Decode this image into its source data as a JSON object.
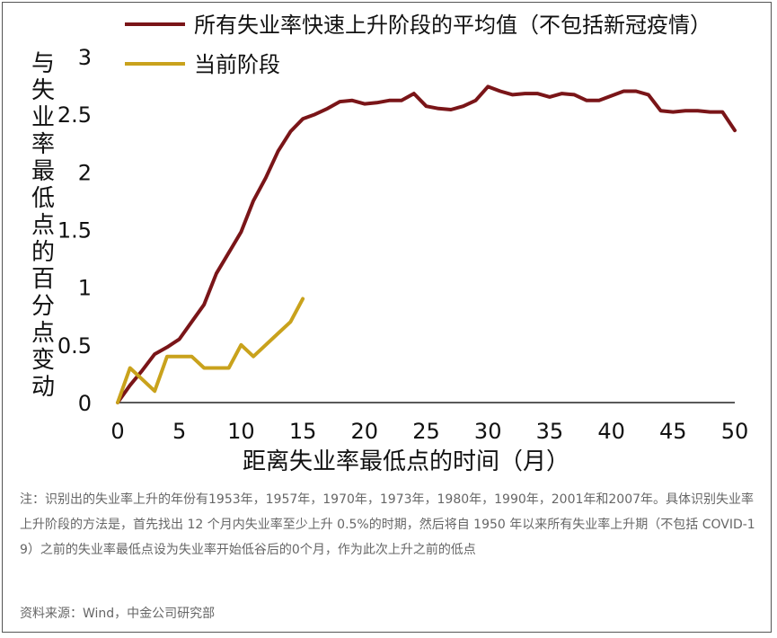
{
  "chart_data": {
    "type": "line",
    "title": "",
    "xlabel": "距离失业率最低点的时间（月）",
    "ylabel": "与失业率最低点的百分点变动",
    "xlim": [
      0,
      50
    ],
    "ylim": [
      0,
      3
    ],
    "xticks": [
      "0",
      "5",
      "10",
      "15",
      "20",
      "25",
      "30",
      "35",
      "40",
      "45",
      "50"
    ],
    "yticks": [
      "0",
      "0.5",
      "1",
      "1.5",
      "2",
      "2.5",
      "3"
    ],
    "legend_position": "top",
    "series": [
      {
        "name": "所有失业率快速上升阶段的平均值（不包括新冠疫情）",
        "color": "#7a1518",
        "x": [
          0,
          1,
          2,
          3,
          4,
          5,
          6,
          7,
          8,
          9,
          10,
          11,
          12,
          13,
          14,
          15,
          16,
          17,
          18,
          19,
          20,
          21,
          22,
          23,
          24,
          25,
          26,
          27,
          28,
          29,
          30,
          31,
          32,
          33,
          34,
          35,
          36,
          37,
          38,
          39,
          40,
          41,
          42,
          43,
          44,
          45,
          46,
          47,
          48,
          49,
          50
        ],
        "y": [
          0,
          0.15,
          0.28,
          0.42,
          0.48,
          0.55,
          0.7,
          0.85,
          1.12,
          1.3,
          1.48,
          1.75,
          1.95,
          2.18,
          2.35,
          2.46,
          2.5,
          2.55,
          2.61,
          2.62,
          2.59,
          2.6,
          2.62,
          2.62,
          2.68,
          2.57,
          2.55,
          2.54,
          2.57,
          2.62,
          2.74,
          2.7,
          2.67,
          2.68,
          2.68,
          2.65,
          2.68,
          2.67,
          2.62,
          2.62,
          2.66,
          2.7,
          2.7,
          2.67,
          2.53,
          2.52,
          2.53,
          2.53,
          2.52,
          2.52,
          2.36
        ]
      },
      {
        "name": "当前阶段",
        "color": "#c9a21c",
        "x": [
          0,
          1,
          2,
          3,
          4,
          5,
          6,
          7,
          8,
          9,
          10,
          11,
          12,
          13,
          14,
          15
        ],
        "y": [
          0,
          0.3,
          0.2,
          0.1,
          0.4,
          0.4,
          0.4,
          0.3,
          0.3,
          0.3,
          0.5,
          0.4,
          0.5,
          0.6,
          0.7,
          0.9
        ]
      }
    ]
  },
  "note": "注：识别出的失业率上升的年份有1953年，1957年，1970年，1973年，1980年，1990年，2001年和2007年。具体识别失业率上升阶段的方法是，首先找出 12 个月内失业率至少上升 0.5%的时期，然后将自 1950 年以来所有失业率上升期（不包括 COVID-19）之前的失业率最低点设为失业率开始低谷后的0个月，作为此次上升之前的低点",
  "source": "资料来源：Wind，中金公司研究部"
}
